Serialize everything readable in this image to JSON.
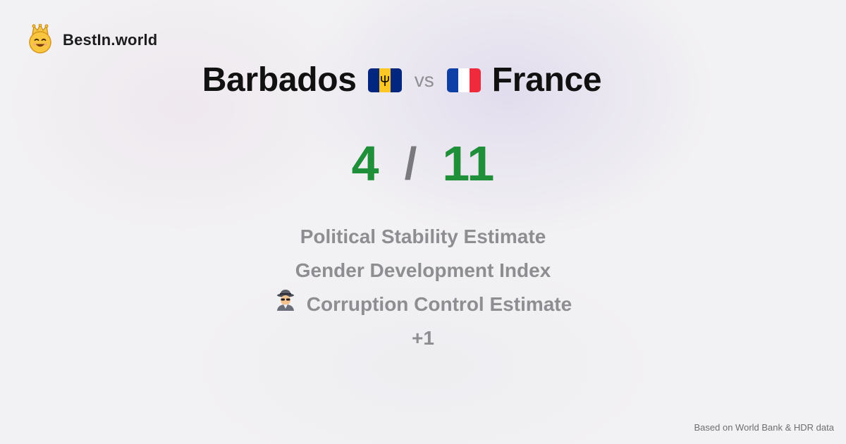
{
  "brand": {
    "name": "BestIn.world",
    "icon": "crowned-smiley-icon"
  },
  "comparison": {
    "left_country": "Barbados",
    "left_flag": "barbados-flag-icon",
    "vs_label": "vs",
    "right_country": "France",
    "right_flag": "france-flag-icon"
  },
  "score": {
    "left": "4",
    "separator": "/",
    "right": "11"
  },
  "metrics": [
    {
      "label": "Political Stability Estimate"
    },
    {
      "label": "Gender Development Index"
    },
    {
      "label": "Corruption Control Estimate",
      "icon": "detective-icon"
    },
    {
      "label": "+1"
    }
  ],
  "footer": {
    "source_note": "Based on World Bank & HDR data"
  },
  "colors": {
    "score_green": "#1f8f3a",
    "muted_gray": "#8e8e92",
    "brand_yellow": "#f6c543"
  }
}
